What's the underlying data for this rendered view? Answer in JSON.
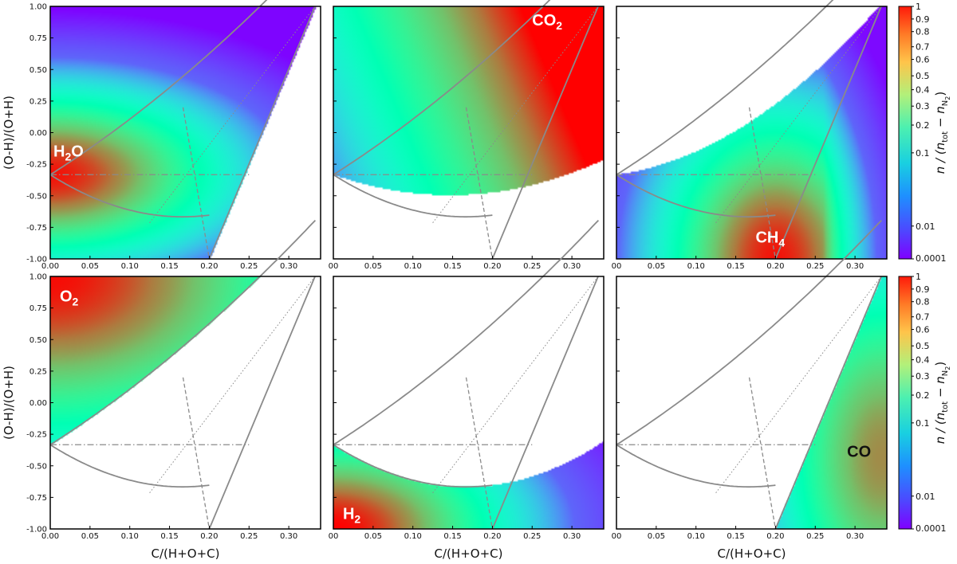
{
  "chart_data": {
    "type": "heatmap",
    "xlabel": "C/(H+O+C)",
    "ylabel": "(O-H)/(O+H)",
    "colorbar_label": "n / (n_tot − n_N2)",
    "colorbar_label_parts": {
      "prefix": "n / (n",
      "sub1": "tot",
      "middle": " − n",
      "sub2": "N",
      "sub3": "2",
      "suffix": ")"
    },
    "colormap": "rainbow",
    "colorbar_scale": "log",
    "colorbar_ticks": [
      "1",
      "0.9",
      "0.8",
      "0.7",
      "0.6",
      "0.5",
      "0.4",
      "0.3",
      "0.2",
      "0.1",
      "0.01",
      "0.0001"
    ],
    "colorbar_values": [
      1,
      0.9,
      0.8,
      0.7,
      0.6,
      0.5,
      0.4,
      0.3,
      0.2,
      0.1,
      0.01,
      0.0001
    ],
    "xlim": [
      0,
      0.34
    ],
    "ylim": [
      -1.0,
      1.0
    ],
    "x_ticks": [
      0,
      0.05,
      0.1,
      0.15,
      0.2,
      0.25,
      0.3
    ],
    "x_tick_labels": [
      "0.00",
      "0.05",
      "0.10",
      "0.15",
      "0.20",
      "0.25",
      "0.30"
    ],
    "x_tick_labels_short": [
      "00",
      "0.05",
      "0.10",
      "0.15",
      "0.20",
      "0.25",
      "0.30"
    ],
    "y_ticks": [
      1,
      0.75,
      0.5,
      0.25,
      0,
      -0.25,
      -0.5,
      -0.75,
      -1
    ],
    "y_tick_labels": [
      "1.00",
      "0.75",
      "0.50",
      "0.25",
      "0.00",
      "-0.25",
      "-0.50",
      "-0.75",
      "-1.00"
    ],
    "reference_lines": {
      "vertices": [
        [
          0,
          -0.333
        ],
        [
          0.2,
          -1.0
        ],
        [
          0.333,
          1.0
        ]
      ],
      "dashed": [
        [
          0.167,
          0.2
        ],
        [
          0.2,
          -1.0
        ]
      ],
      "dotted": [
        [
          0.125,
          -0.714
        ],
        [
          0.333,
          1.0
        ]
      ],
      "dashdot": [
        [
          0,
          -0.333
        ],
        [
          0.25,
          -0.333
        ]
      ]
    },
    "panels": [
      {
        "species": "H₂O",
        "species_base": "H",
        "species_sub": "2",
        "species_tail": "O",
        "label_color": "#ffffff",
        "label_pos": [
          0.004,
          -0.19
        ],
        "dominant_region": "left-center peak near x=0, y=-0.33"
      },
      {
        "species": "CO₂",
        "species_base": "CO",
        "species_sub": "2",
        "species_tail": "",
        "label_color": "#ffffff",
        "label_pos": [
          0.25,
          0.85
        ],
        "dominant_region": "upper-right near x=0.33, y=1"
      },
      {
        "species": "CH₄",
        "species_base": "CH",
        "species_sub": "4",
        "species_tail": "",
        "label_color": "#ffffff",
        "label_pos": [
          0.175,
          -0.87
        ],
        "dominant_region": "bottom near x=0.2, y=-1"
      },
      {
        "species": "O₂",
        "species_base": "O",
        "species_sub": "2",
        "species_tail": "",
        "label_color": "#ffffff",
        "label_pos": [
          0.012,
          0.8
        ],
        "dominant_region": "upper-left above the lower boundary"
      },
      {
        "species": "H₂",
        "species_base": "H",
        "species_sub": "2",
        "species_tail": "",
        "label_color": "#ffffff",
        "label_pos": [
          0.012,
          -0.92
        ],
        "dominant_region": "bottom-left below the lower curve"
      },
      {
        "species": "CO",
        "species_base": "CO",
        "species_sub": "",
        "species_tail": "",
        "label_color": "#111111",
        "label_pos": [
          0.29,
          -0.43
        ],
        "dominant_region": "bottom-right wedge right of x=0.2 line"
      }
    ]
  },
  "colors": {
    "line": "#8a8a8a",
    "frame": "#000000"
  }
}
